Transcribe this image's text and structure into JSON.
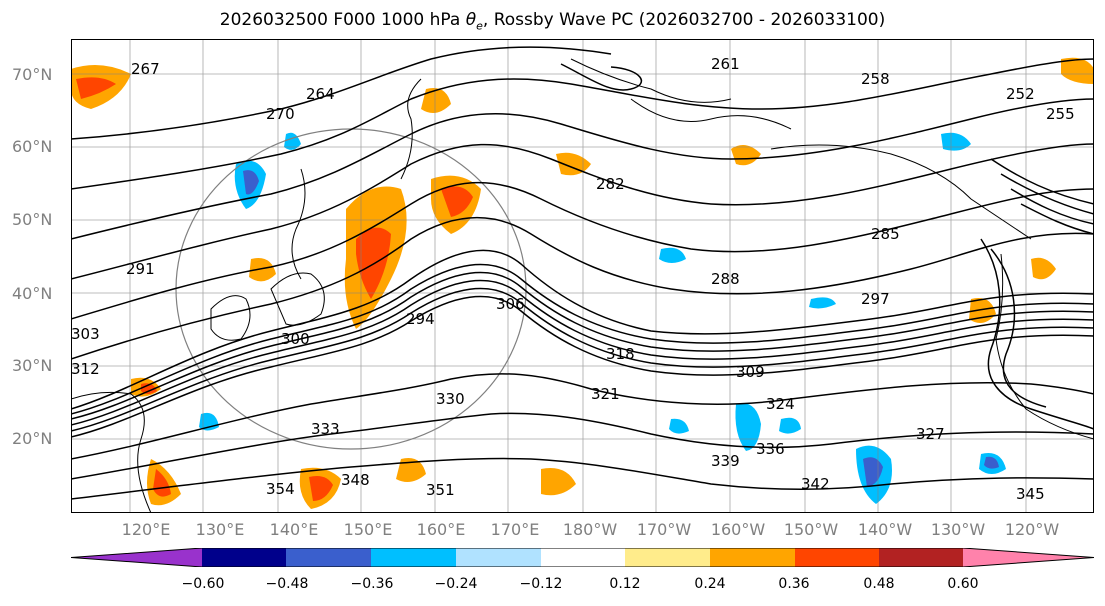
{
  "title": "2026032500 F000 1000 hPa θe, Rossby Wave PC (2026032700 - 2026033100)",
  "lat_labels": [
    "70°N",
    "60°N",
    "50°N",
    "40°N",
    "30°N",
    "20°N"
  ],
  "lon_labels": [
    "120°E",
    "130°E",
    "140°E",
    "150°E",
    "160°E",
    "170°E",
    "180°W",
    "170°W",
    "160°W",
    "150°W",
    "140°W",
    "130°W",
    "120°W"
  ],
  "contour_labels": [
    "261",
    "264",
    "267",
    "270",
    "252",
    "255",
    "258",
    "282",
    "285",
    "288",
    "291",
    "294",
    "297",
    "300",
    "303",
    "306",
    "309",
    "312",
    "318",
    "321",
    "324",
    "327",
    "330",
    "333",
    "336",
    "339",
    "342",
    "345",
    "348",
    "351",
    "354"
  ],
  "colorbar": {
    "ticks": [
      "−0.60",
      "−0.48",
      "−0.36",
      "−0.24",
      "−0.12",
      "0.12",
      "0.24",
      "0.36",
      "0.48",
      "0.60"
    ],
    "colors": [
      "#9932CC",
      "#00008B",
      "#3A5FCD",
      "#00BFFF",
      "#B0E2FF",
      "#FFFFFF",
      "#FFEC8B",
      "#FFA500",
      "#FF4500",
      "#B22222",
      "#FF82AB"
    ]
  }
}
